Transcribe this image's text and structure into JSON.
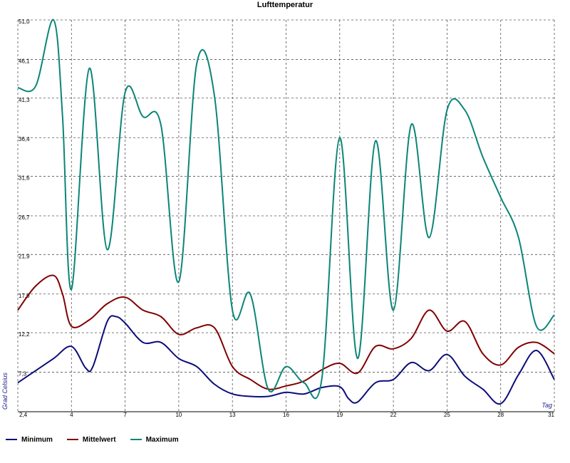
{
  "chart_data": {
    "type": "line",
    "title": "Lufttemperatur",
    "xlabel": "Tag",
    "ylabel": "Grad Celsius",
    "xlim": [
      1,
      31
    ],
    "ylim": [
      2.4,
      51.0
    ],
    "x_ticks": [
      "4",
      "7",
      "10",
      "13",
      "16",
      "19",
      "22",
      "25",
      "28",
      "31"
    ],
    "y_ticks": [
      "2,4",
      "7,3",
      "12,2",
      "17,0",
      "21,9",
      "26,7",
      "31,6",
      "36,4",
      "41,3",
      "46,1",
      "51,0"
    ],
    "grid": true,
    "legend_position": "bottom-left",
    "series": [
      {
        "name": "Minimum",
        "color": "#0c0c7a",
        "x": [
          1,
          2,
          3,
          4,
          4.8,
          5.2,
          6,
          6.5,
          7,
          8,
          9,
          10,
          11,
          12,
          13,
          14,
          15,
          16,
          17,
          18,
          19,
          19.5,
          20,
          21,
          22,
          23,
          24,
          25,
          26,
          27,
          28,
          29,
          30,
          31
        ],
        "values": [
          6.0,
          7.5,
          9.0,
          10.5,
          7.8,
          8.0,
          13.6,
          14.2,
          13.4,
          11.0,
          11.0,
          9.0,
          8.0,
          5.8,
          4.6,
          4.3,
          4.3,
          4.8,
          4.6,
          5.4,
          5.5,
          4.0,
          3.6,
          6.0,
          6.4,
          8.5,
          7.5,
          9.5,
          6.8,
          5.2,
          3.4,
          7.0,
          10.0,
          6.4
        ]
      },
      {
        "name": "Mittelwert",
        "color": "#800000",
        "x": [
          1,
          2,
          3,
          3.5,
          4,
          5,
          6,
          7,
          8,
          9,
          10,
          11,
          12,
          13,
          14,
          15,
          16,
          17,
          18,
          19,
          20,
          21,
          22,
          23,
          24,
          25,
          26,
          27,
          28,
          29,
          30,
          31
        ],
        "values": [
          15.0,
          18.0,
          19.3,
          17.0,
          13.0,
          13.8,
          15.8,
          16.6,
          15.0,
          14.2,
          12.0,
          12.8,
          12.8,
          8.0,
          6.4,
          5.2,
          5.6,
          6.2,
          7.6,
          8.4,
          7.2,
          10.5,
          10.2,
          11.5,
          15.0,
          12.4,
          13.6,
          9.6,
          8.2,
          10.4,
          11.0,
          9.6
        ]
      },
      {
        "name": "Maximum",
        "color": "#0b8577",
        "x": [
          1,
          2,
          3,
          3.5,
          4,
          5,
          6,
          7,
          8,
          9,
          10,
          11,
          12,
          13,
          14,
          15,
          16,
          17,
          18,
          19,
          20,
          21,
          22,
          23,
          24,
          25,
          26,
          27,
          28,
          29,
          30,
          31
        ],
        "values": [
          42.6,
          42.8,
          51.0,
          39.0,
          17.6,
          45.0,
          22.5,
          42.0,
          39.0,
          38.0,
          18.5,
          45.5,
          41.5,
          15.0,
          17.0,
          5.2,
          8.0,
          6.0,
          6.5,
          36.4,
          9.0,
          36.0,
          15.0,
          38.0,
          24.0,
          39.8,
          39.8,
          34.0,
          29.0,
          24.0,
          13.0,
          14.4
        ]
      }
    ]
  }
}
